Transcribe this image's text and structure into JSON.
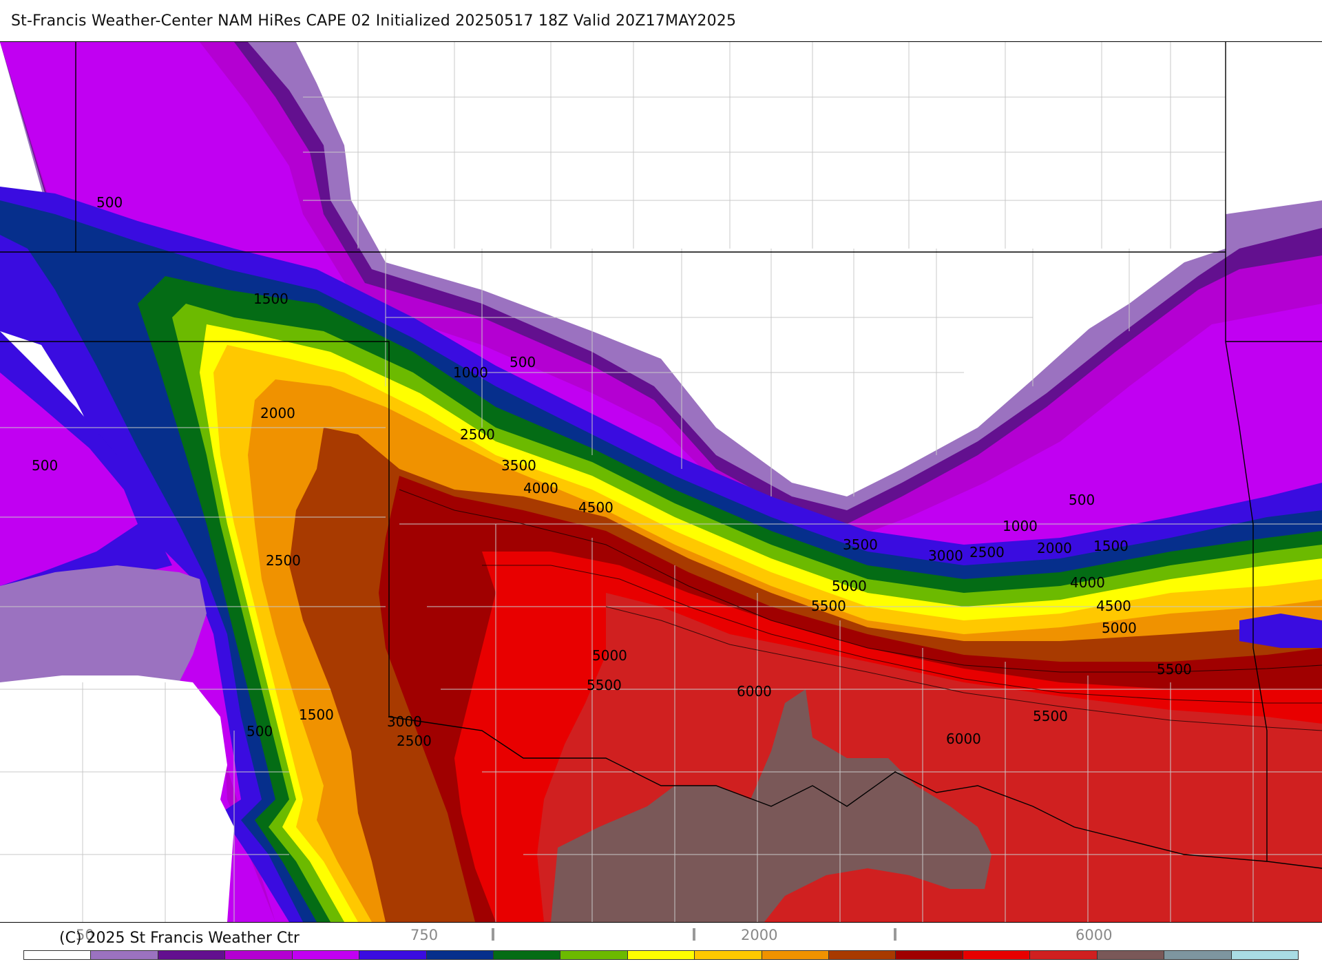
{
  "title": "St-Francis Weather-Center NAM HiRes CAPE  02 Initialized 20250517 18Z Valid 20Z17MAY2025",
  "copyright": "(C) 2025 St Francis Weather Ctr",
  "colorbar": {
    "colors": [
      "#ffffff",
      "#9b72c0",
      "#63108f",
      "#b400d2",
      "#c100f2",
      "#3a0ce0",
      "#062f8c",
      "#046c15",
      "#6cba00",
      "#ffff00",
      "#ffc800",
      "#f09200",
      "#a83a00",
      "#a00000",
      "#e80000",
      "#d02020",
      "#7a5858",
      "#7e96a0",
      "#a9dce4"
    ],
    "tick_labels": [
      "50",
      "750",
      "2000",
      "6000"
    ],
    "tick_overlap": [
      "1",
      "100"
    ]
  },
  "contour_labels": [
    {
      "text": "500"
    },
    {
      "text": "500"
    },
    {
      "text": "1500"
    },
    {
      "text": "500"
    },
    {
      "text": "1000"
    },
    {
      "text": "2000"
    },
    {
      "text": "2500"
    },
    {
      "text": "3500"
    },
    {
      "text": "4000"
    },
    {
      "text": "4500"
    },
    {
      "text": "2500"
    },
    {
      "text": "500"
    },
    {
      "text": "1000"
    },
    {
      "text": "3500"
    },
    {
      "text": "3000"
    },
    {
      "text": "2500"
    },
    {
      "text": "2000"
    },
    {
      "text": "1500"
    },
    {
      "text": "5000"
    },
    {
      "text": "5500"
    },
    {
      "text": "4000"
    },
    {
      "text": "4500"
    },
    {
      "text": "5000"
    },
    {
      "text": "5000"
    },
    {
      "text": "5500"
    },
    {
      "text": "6000"
    },
    {
      "text": "5500"
    },
    {
      "text": "1500"
    },
    {
      "text": "500"
    },
    {
      "text": "3000"
    },
    {
      "text": "2500"
    },
    {
      "text": "6000"
    },
    {
      "text": "5500"
    }
  ]
}
